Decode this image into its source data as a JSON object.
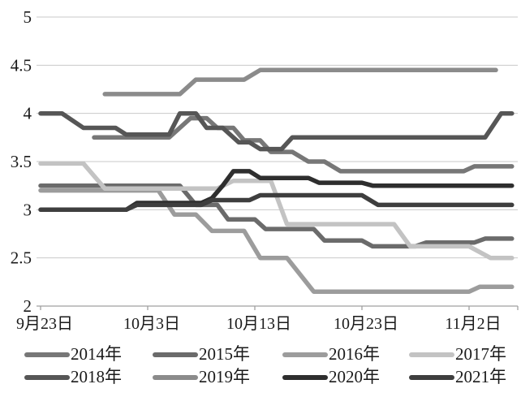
{
  "chart_data": {
    "type": "line",
    "title": "",
    "xlabel": "",
    "ylabel": "",
    "ylim": [
      2,
      5
    ],
    "grid": "horizontal",
    "legend_position": "bottom",
    "y_ticks": [
      2,
      2.5,
      3,
      3.5,
      4,
      4.5,
      5
    ],
    "y_tick_labels": [
      "2",
      "2.5",
      "3",
      "3.5",
      "4",
      "4.5",
      "5"
    ],
    "x_tick_days": [
      0,
      10,
      20,
      30,
      40
    ],
    "x_tick_labels": [
      "9月23日",
      "10月3日",
      "10月13日",
      "10月23日",
      "11月2日"
    ],
    "x_range_days": [
      0,
      44
    ],
    "series": [
      {
        "name": "2014年",
        "color": "#777777",
        "points": [
          [
            5,
            3.75
          ],
          [
            12,
            3.75
          ],
          [
            14,
            3.95
          ],
          [
            15.5,
            3.95
          ],
          [
            16.5,
            3.85
          ],
          [
            18,
            3.85
          ],
          [
            19,
            3.72
          ],
          [
            20.5,
            3.72
          ],
          [
            21.5,
            3.6
          ],
          [
            23.5,
            3.6
          ],
          [
            25,
            3.5
          ],
          [
            26.5,
            3.5
          ],
          [
            28,
            3.4
          ],
          [
            39.5,
            3.4
          ],
          [
            40.5,
            3.45
          ],
          [
            44,
            3.45
          ]
        ]
      },
      {
        "name": "2015年",
        "color": "#6b6b6b",
        "points": [
          [
            0,
            3.25
          ],
          [
            13,
            3.25
          ],
          [
            14.5,
            3.05
          ],
          [
            16.5,
            3.05
          ],
          [
            17.5,
            2.9
          ],
          [
            20,
            2.9
          ],
          [
            21,
            2.8
          ],
          [
            25.5,
            2.8
          ],
          [
            26.5,
            2.68
          ],
          [
            30,
            2.68
          ],
          [
            31,
            2.62
          ],
          [
            35,
            2.62
          ],
          [
            36,
            2.66
          ],
          [
            40.5,
            2.66
          ],
          [
            41.5,
            2.7
          ],
          [
            44,
            2.7
          ]
        ]
      },
      {
        "name": "2016年",
        "color": "#9c9c9c",
        "points": [
          [
            0,
            3.2
          ],
          [
            11,
            3.2
          ],
          [
            12.5,
            2.95
          ],
          [
            14.5,
            2.95
          ],
          [
            16,
            2.78
          ],
          [
            19,
            2.78
          ],
          [
            20.5,
            2.5
          ],
          [
            23,
            2.5
          ],
          [
            25.5,
            2.15
          ],
          [
            40,
            2.15
          ],
          [
            41,
            2.2
          ],
          [
            44,
            2.2
          ]
        ]
      },
      {
        "name": "2017年",
        "color": "#c3c3c3",
        "points": [
          [
            0,
            3.48
          ],
          [
            4,
            3.48
          ],
          [
            6,
            3.22
          ],
          [
            16.5,
            3.22
          ],
          [
            18,
            3.3
          ],
          [
            21.5,
            3.3
          ],
          [
            23,
            2.85
          ],
          [
            33,
            2.85
          ],
          [
            34.5,
            2.62
          ],
          [
            40,
            2.62
          ],
          [
            42,
            2.5
          ],
          [
            44,
            2.5
          ]
        ]
      },
      {
        "name": "2018年",
        "color": "#565656",
        "points": [
          [
            0,
            4.0
          ],
          [
            2,
            4.0
          ],
          [
            4,
            3.85
          ],
          [
            7,
            3.85
          ],
          [
            8,
            3.78
          ],
          [
            12,
            3.78
          ],
          [
            13,
            4.0
          ],
          [
            14.5,
            4.0
          ],
          [
            15.5,
            3.85
          ],
          [
            17,
            3.85
          ],
          [
            18.5,
            3.7
          ],
          [
            19.5,
            3.7
          ],
          [
            20.5,
            3.63
          ],
          [
            22.5,
            3.63
          ],
          [
            23.5,
            3.75
          ],
          [
            41.5,
            3.75
          ],
          [
            43,
            4.0
          ],
          [
            44,
            4.0
          ]
        ]
      },
      {
        "name": "2019年",
        "color": "#8b8b8b",
        "points": [
          [
            6,
            4.2
          ],
          [
            13,
            4.2
          ],
          [
            14.5,
            4.35
          ],
          [
            19,
            4.35
          ],
          [
            20.5,
            4.45
          ],
          [
            42.5,
            4.45
          ]
        ]
      },
      {
        "name": "2020年",
        "color": "#2e2e2e",
        "points": [
          [
            1,
            3.0
          ],
          [
            8,
            3.0
          ],
          [
            9,
            3.07
          ],
          [
            15,
            3.07
          ],
          [
            16,
            3.12
          ],
          [
            17,
            3.25
          ],
          [
            18,
            3.4
          ],
          [
            19.5,
            3.4
          ],
          [
            20.5,
            3.33
          ],
          [
            25,
            3.33
          ],
          [
            26,
            3.28
          ],
          [
            30,
            3.28
          ],
          [
            31,
            3.25
          ],
          [
            44,
            3.25
          ]
        ]
      },
      {
        "name": "2021年",
        "color": "#3e3e3e",
        "points": [
          [
            0,
            3.0
          ],
          [
            8,
            3.0
          ],
          [
            9,
            3.05
          ],
          [
            15,
            3.05
          ],
          [
            16,
            3.1
          ],
          [
            19.5,
            3.1
          ],
          [
            20.5,
            3.15
          ],
          [
            30,
            3.15
          ],
          [
            31.5,
            3.05
          ],
          [
            44,
            3.05
          ]
        ]
      }
    ],
    "style": {
      "gridline_color": "#c9c9c9",
      "axis_color": "#a0a0a0",
      "line_width": 5.5,
      "background": "#ffffff"
    }
  }
}
